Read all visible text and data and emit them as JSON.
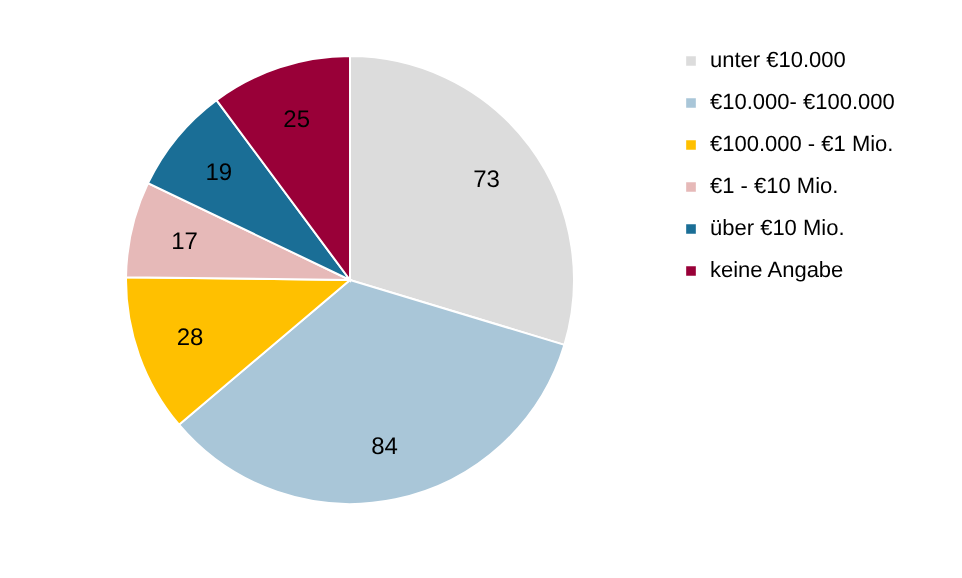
{
  "chart_data": {
    "type": "pie",
    "categories": [
      "unter €10.000",
      "€10.000- €100.000",
      "€100.000 - €1 Mio.",
      "€1 - €10 Mio.",
      "über €10 Mio.",
      "keine Angabe"
    ],
    "values": [
      73,
      84,
      28,
      17,
      19,
      25
    ],
    "colors": [
      "#dcdcdc",
      "#a9c6d8",
      "#ffc000",
      "#e6b9b8",
      "#1a6e96",
      "#990038"
    ],
    "data_labels": true,
    "legend": "right"
  }
}
